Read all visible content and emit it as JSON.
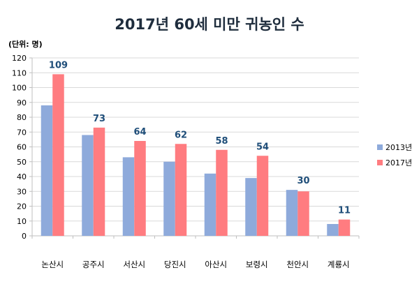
{
  "chart_data": {
    "type": "bar",
    "title": "2017년 60세 미만 귀농인 수",
    "unit_label": "(단위: 명)",
    "categories": [
      "논산시",
      "공주시",
      "서산시",
      "당진시",
      "아산시",
      "보령시",
      "천안시",
      "계룡시"
    ],
    "series": [
      {
        "name": "2013년",
        "values": [
          88,
          68,
          53,
          50,
          42,
          39,
          31,
          8
        ],
        "color": "#8eaadb"
      },
      {
        "name": "2017년",
        "values": [
          109,
          73,
          64,
          62,
          58,
          54,
          30,
          11
        ],
        "color": "#ff7c80"
      }
    ],
    "data_labels": [
      "109",
      "73",
      "64",
      "62",
      "58",
      "54",
      "30",
      "11"
    ],
    "data_label_color": "#1f4e79",
    "yticks": [
      0,
      10,
      20,
      30,
      40,
      50,
      60,
      70,
      80,
      90,
      100,
      110,
      120
    ],
    "ylim": [
      0,
      120
    ],
    "grid": true,
    "legend_position": "right"
  }
}
